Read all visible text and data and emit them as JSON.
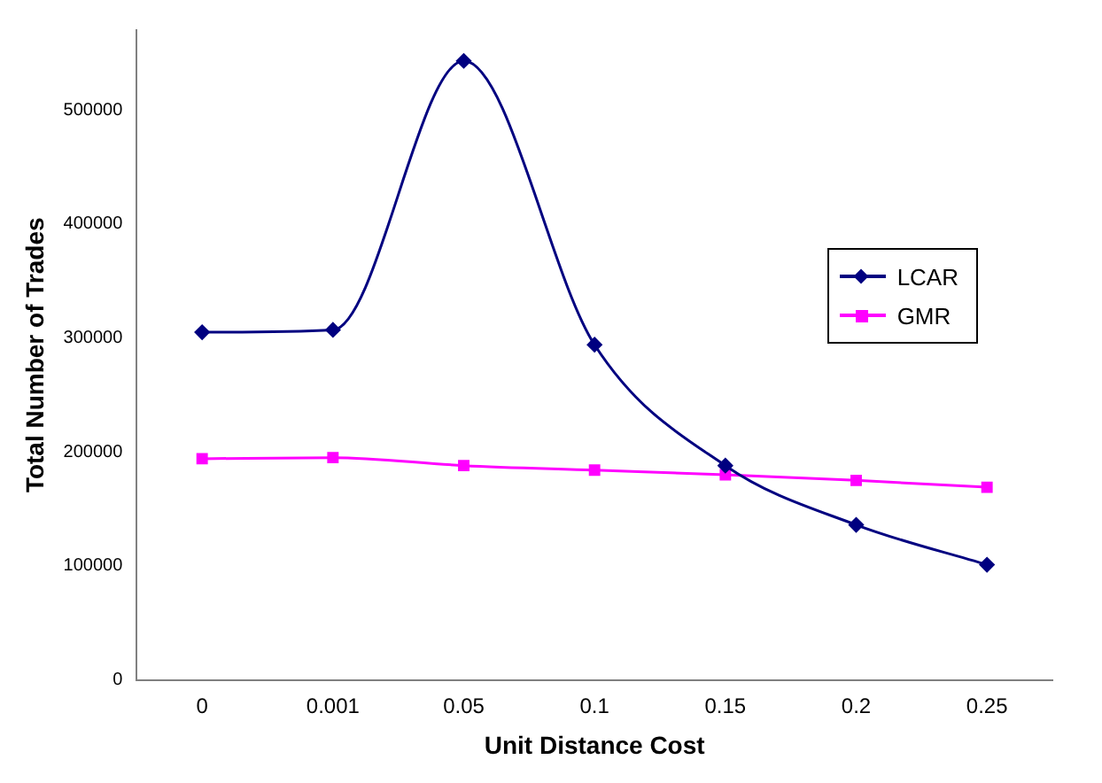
{
  "chart_data": {
    "type": "line",
    "xlabel": "Unit Distance Cost",
    "ylabel": "Total Number of Trades",
    "categories": [
      "0",
      "0.001",
      "0.05",
      "0.1",
      "0.15",
      "0.2",
      "0.25"
    ],
    "series": [
      {
        "name": "LCAR",
        "color": "#000080",
        "marker": "diamond",
        "values": [
          305000,
          307000,
          543000,
          294000,
          188000,
          136000,
          101000
        ]
      },
      {
        "name": "GMR",
        "color": "#ff00ff",
        "marker": "square",
        "values": [
          194000,
          195000,
          188000,
          184000,
          180000,
          175000,
          169000
        ]
      }
    ],
    "ylim": [
      0,
      570000
    ],
    "yticks": [
      0,
      100000,
      200000,
      300000,
      400000,
      500000
    ],
    "grid": false,
    "legend": "right",
    "line_style": "solid"
  }
}
